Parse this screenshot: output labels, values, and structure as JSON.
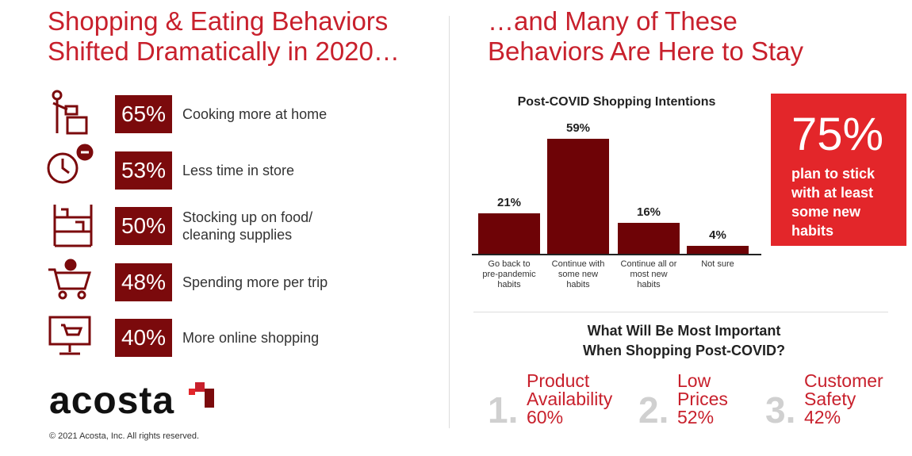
{
  "left": {
    "title": "Shopping & Eating Behaviors\nShifted Dramatically in 2020…",
    "items": [
      {
        "percent": "65%",
        "label": "Cooking more at home"
      },
      {
        "percent": "53%",
        "label": "Less time in store"
      },
      {
        "percent": "50%",
        "label": "Stocking up on food/\ncleaning supplies"
      },
      {
        "percent": "48%",
        "label": "Spending more per trip"
      },
      {
        "percent": "40%",
        "label": "More online shopping"
      }
    ]
  },
  "right": {
    "title": "…and Many of These\nBehaviors Are Here to Stay",
    "callout": {
      "percent": "75%",
      "text": "plan to stick\nwith at least\nsome new\nhabits"
    },
    "question": "What Will Be Most Important\nWhen Shopping Post-COVID?",
    "answers": [
      {
        "rank": "1.",
        "label": "Product\nAvailability",
        "percent": "60%"
      },
      {
        "rank": "2.",
        "label": "Low\nPrices",
        "percent": "52%"
      },
      {
        "rank": "3.",
        "label": "Customer\nSafety",
        "percent": "42%"
      }
    ]
  },
  "chart_data": {
    "type": "bar",
    "title": "Post-COVID Shopping Intentions",
    "categories": [
      "Go back to\npre-pandemic\nhabits",
      "Continue with\nsome new\nhabits",
      "Continue all or\nmost new\nhabits",
      "Not sure"
    ],
    "values": [
      21,
      59,
      16,
      4
    ],
    "value_labels": [
      "21%",
      "59%",
      "16%",
      "4%"
    ],
    "color": "#6e0306"
  },
  "footer": {
    "logo": "acosta",
    "copyright": "© 2021 Acosta, Inc. All rights reserved."
  }
}
